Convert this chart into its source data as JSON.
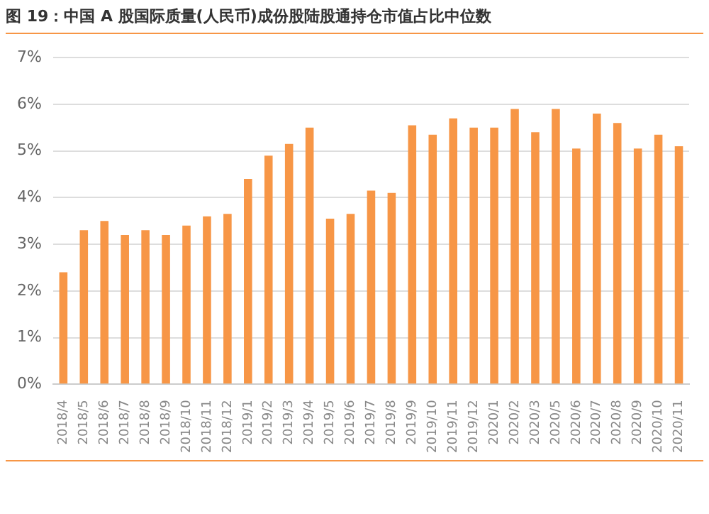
{
  "chart_data": {
    "type": "bar",
    "title": "图 19：中国 A 股国际质量(人民币)成份股陆股通持仓市值占比中位数",
    "categories": [
      "2018/4",
      "2018/5",
      "2018/6",
      "2018/7",
      "2018/8",
      "2018/9",
      "2018/10",
      "2018/11",
      "2018/12",
      "2019/1",
      "2019/2",
      "2019/3",
      "2019/4",
      "2019/5",
      "2019/6",
      "2019/7",
      "2019/8",
      "2019/9",
      "2019/10",
      "2019/11",
      "2019/12",
      "2020/1",
      "2020/2",
      "2020/3",
      "2020/5",
      "2020/6",
      "2020/7",
      "2020/8",
      "2020/9",
      "2020/10",
      "2020/11"
    ],
    "values": [
      2.4,
      3.3,
      3.5,
      3.2,
      3.3,
      3.2,
      3.4,
      3.6,
      3.65,
      4.4,
      4.9,
      5.15,
      5.5,
      3.55,
      3.65,
      4.15,
      4.1,
      5.55,
      5.35,
      5.7,
      5.5,
      5.5,
      5.9,
      5.4,
      5.9,
      5.05,
      5.8,
      5.6,
      5.05,
      5.35,
      5.1
    ],
    "color": "#f79646",
    "ylim": [
      0,
      7
    ],
    "yticks": [
      {
        "value": 0,
        "label": "0%"
      },
      {
        "value": 1,
        "label": "1%"
      },
      {
        "value": 2,
        "label": "2%"
      },
      {
        "value": 3,
        "label": "3%"
      },
      {
        "value": 4,
        "label": "4%"
      },
      {
        "value": 5,
        "label": "5%"
      },
      {
        "value": 6,
        "label": "6%"
      },
      {
        "value": 7,
        "label": "7%"
      }
    ],
    "grid": "y"
  }
}
